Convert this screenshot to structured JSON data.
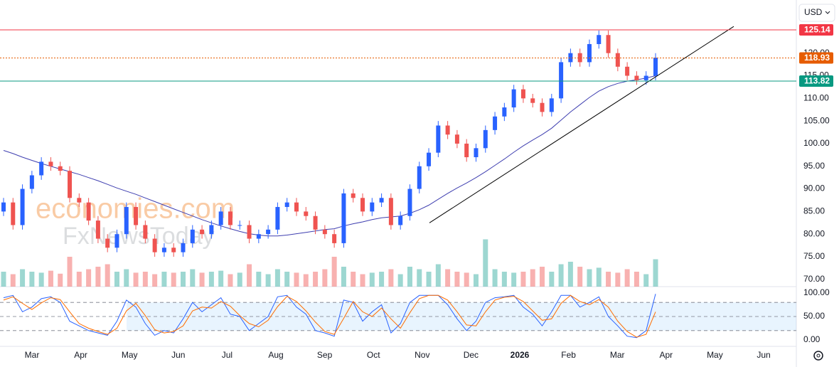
{
  "chart_data": {
    "type": "candlestick",
    "currency": "USD",
    "watermark": [
      "economies.com",
      "FxNewsToday"
    ],
    "months": [
      "Mar",
      "Apr",
      "May",
      "Jun",
      "Jul",
      "Aug",
      "Sep",
      "Oct",
      "Nov",
      "Dec",
      "2026",
      "Feb",
      "Mar",
      "Apr",
      "May",
      "Jun"
    ],
    "ylim": [
      68.4,
      131.74
    ],
    "yticks": [
      {
        "value": 70,
        "label": "70.00"
      },
      {
        "value": 75,
        "label": "75.00"
      },
      {
        "value": 80,
        "label": "80.00"
      },
      {
        "value": 85,
        "label": "85.00"
      },
      {
        "value": 90,
        "label": "90.00"
      },
      {
        "value": 95,
        "label": "95.00"
      },
      {
        "value": 100,
        "label": "100.00"
      },
      {
        "value": 105,
        "label": "105.00"
      },
      {
        "value": 110,
        "label": "110.00"
      },
      {
        "value": 115,
        "label": "115.00"
      },
      {
        "value": 120,
        "label": "120.00"
      }
    ],
    "levels": [
      {
        "value": 125.14,
        "label": "125.14",
        "color": "#f23645",
        "dash": false
      },
      {
        "value": 118.93,
        "label": "118.93",
        "color": "#e65c00",
        "dash": true
      },
      {
        "value": 113.82,
        "label": "113.82",
        "color": "#089981",
        "dash": false
      }
    ],
    "up_color": "#2962ff",
    "down_color": "#ef5350",
    "candles": [
      [
        85,
        88,
        84,
        87
      ],
      [
        87,
        88,
        81,
        82
      ],
      [
        82,
        91,
        81,
        90
      ],
      [
        90,
        94,
        89,
        93
      ],
      [
        93,
        97,
        92,
        96
      ],
      [
        96,
        97,
        94,
        95
      ],
      [
        95,
        96,
        93,
        94
      ],
      [
        94,
        95,
        87,
        88
      ],
      [
        88,
        89,
        86,
        87
      ],
      [
        87,
        88,
        82,
        83
      ],
      [
        83,
        84,
        78,
        79
      ],
      [
        79,
        80,
        76,
        77
      ],
      [
        77,
        81,
        76,
        80
      ],
      [
        80,
        87,
        79,
        86
      ],
      [
        86,
        87,
        81,
        82
      ],
      [
        82,
        83,
        78,
        79
      ],
      [
        79,
        80,
        75,
        76
      ],
      [
        76,
        78,
        75,
        77
      ],
      [
        77,
        78,
        75,
        76
      ],
      [
        76,
        79,
        75,
        78
      ],
      [
        78,
        82,
        77,
        81
      ],
      [
        81,
        82,
        79,
        80
      ],
      [
        80,
        83,
        79,
        82
      ],
      [
        82,
        86,
        81,
        85
      ],
      [
        85,
        86,
        81,
        82
      ],
      [
        82,
        83,
        81,
        82
      ],
      [
        82,
        83,
        78,
        79
      ],
      [
        79,
        81,
        78,
        80
      ],
      [
        80,
        82,
        79,
        81
      ],
      [
        81,
        87,
        80,
        86
      ],
      [
        86,
        88,
        85,
        87
      ],
      [
        87,
        88,
        84,
        85
      ],
      [
        85,
        86,
        83,
        84
      ],
      [
        84,
        85,
        80,
        81
      ],
      [
        81,
        82,
        79,
        80
      ],
      [
        80,
        81,
        77,
        78
      ],
      [
        78,
        90,
        77,
        89
      ],
      [
        89,
        90,
        87,
        88
      ],
      [
        88,
        89,
        84,
        85
      ],
      [
        85,
        88,
        84,
        87
      ],
      [
        87,
        89,
        86,
        88
      ],
      [
        88,
        89,
        81,
        82
      ],
      [
        82,
        85,
        81,
        84
      ],
      [
        84,
        91,
        83,
        90
      ],
      [
        90,
        96,
        89,
        95
      ],
      [
        95,
        99,
        94,
        98
      ],
      [
        98,
        105,
        97,
        104
      ],
      [
        104,
        105,
        101,
        102
      ],
      [
        102,
        103,
        99,
        100
      ],
      [
        100,
        101,
        96,
        97
      ],
      [
        97,
        100,
        96,
        99
      ],
      [
        99,
        104,
        98,
        103
      ],
      [
        103,
        107,
        102,
        106
      ],
      [
        106,
        109,
        105,
        108
      ],
      [
        108,
        113,
        107,
        112
      ],
      [
        112,
        113,
        109,
        110
      ],
      [
        110,
        111,
        108,
        109
      ],
      [
        109,
        110,
        106,
        107
      ],
      [
        107,
        111,
        106,
        110
      ],
      [
        110,
        119,
        109,
        118
      ],
      [
        118,
        121,
        117,
        120
      ],
      [
        120,
        121,
        117,
        118
      ],
      [
        118,
        123,
        117,
        122
      ],
      [
        122,
        125,
        121,
        124
      ],
      [
        124,
        125,
        119,
        120
      ],
      [
        120,
        121,
        116,
        117
      ],
      [
        117,
        118,
        114,
        115
      ],
      [
        115,
        116,
        113,
        114
      ],
      [
        114,
        116,
        113,
        115
      ],
      [
        115,
        120,
        114,
        119
      ]
    ],
    "ma": {
      "color": "#3f3fb0",
      "values": [
        98.5,
        97.8,
        97,
        96.3,
        95.6,
        95,
        94.4,
        93.8,
        93.2,
        92.5,
        91.8,
        91,
        90.2,
        89.5,
        88.8,
        88,
        87.2,
        86.4,
        85.6,
        84.8,
        84,
        83.2,
        82.5,
        81.8,
        81.2,
        80.6,
        80.1,
        79.8,
        79.6,
        79.6,
        79.8,
        80.1,
        80.4,
        80.7,
        81,
        81.2,
        81.8,
        82.3,
        82.7,
        83.2,
        83.6,
        83.8,
        84,
        84.6,
        85.4,
        86.4,
        87.7,
        89,
        90.2,
        91.3,
        92.5,
        93.8,
        95.2,
        96.6,
        98.1,
        99.5,
        100.8,
        102,
        103.4,
        105.2,
        107,
        108.6,
        110.2,
        111.6,
        112.6,
        113.3,
        113.8,
        114.1,
        114.5,
        115
      ]
    },
    "trendline": [
      82.5,
      125.9
    ],
    "volume_ylim": [
      0,
      100
    ],
    "volume": [
      30,
      25,
      35,
      30,
      28,
      32,
      26,
      60,
      30,
      35,
      40,
      45,
      30,
      35,
      28,
      30,
      25,
      30,
      28,
      30,
      35,
      28,
      30,
      32,
      25,
      28,
      45,
      30,
      25,
      35,
      30,
      28,
      25,
      30,
      35,
      60,
      40,
      30,
      25,
      28,
      30,
      35,
      25,
      40,
      35,
      30,
      45,
      35,
      30,
      28,
      25,
      95,
      35,
      30,
      28,
      30,
      35,
      40,
      30,
      45,
      50,
      40,
      35,
      38,
      30,
      28,
      35,
      30,
      25,
      55
    ],
    "stoch_ylim": [
      -13.6,
      113.6
    ],
    "stoch_yticks": [
      {
        "value": 0,
        "label": "0.00"
      },
      {
        "value": 50,
        "label": "50.00"
      },
      {
        "value": 100,
        "label": "100.00"
      }
    ],
    "stoch_levels": [
      20,
      50,
      80
    ],
    "stoch": [
      {
        "color": "#2962ff",
        "values": [
          90,
          95,
          60,
          70,
          88,
          92,
          80,
          40,
          30,
          20,
          15,
          10,
          40,
          85,
          70,
          35,
          10,
          20,
          15,
          45,
          80,
          60,
          75,
          90,
          55,
          50,
          20,
          35,
          50,
          92,
          95,
          70,
          55,
          20,
          15,
          8,
          85,
          80,
          40,
          60,
          75,
          15,
          35,
          80,
          95,
          95,
          95,
          75,
          45,
          20,
          40,
          80,
          90,
          92,
          95,
          70,
          55,
          30,
          60,
          95,
          95,
          70,
          80,
          92,
          50,
          30,
          8,
          5,
          20,
          98
        ]
      },
      {
        "color": "#ff6d00",
        "values": [
          85,
          92,
          78,
          65,
          79,
          90,
          86,
          60,
          35,
          25,
          18,
          12,
          25,
          62,
          78,
          52,
          22,
          15,
          18,
          30,
          62,
          70,
          68,
          82,
          72,
          52,
          35,
          28,
          42,
          71,
          93,
          82,
          62,
          38,
          18,
          12,
          46,
          82,
          60,
          50,
          68,
          45,
          25,
          58,
          88,
          95,
          95,
          85,
          60,
          32,
          30,
          60,
          85,
          91,
          93,
          82,
          62,
          42,
          45,
          78,
          95,
          82,
          75,
          86,
          70,
          40,
          18,
          6,
          12,
          60
        ]
      }
    ]
  }
}
